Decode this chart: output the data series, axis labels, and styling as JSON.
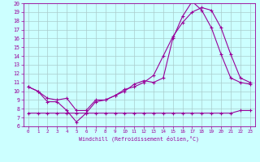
{
  "xlabel": "Windchill (Refroidissement éolien,°C)",
  "x": [
    0,
    1,
    2,
    3,
    4,
    5,
    6,
    7,
    8,
    9,
    10,
    11,
    12,
    13,
    14,
    15,
    16,
    17,
    18,
    19,
    20,
    21,
    22,
    23
  ],
  "line1": [
    10.5,
    10.0,
    8.8,
    8.8,
    7.8,
    6.5,
    7.5,
    8.8,
    9.0,
    9.5,
    10.0,
    10.8,
    11.2,
    11.0,
    11.5,
    16.0,
    18.5,
    20.2,
    19.2,
    17.2,
    14.2,
    11.5,
    11.0,
    10.8
  ],
  "line2": [
    10.5,
    10.0,
    9.2,
    9.0,
    9.2,
    7.8,
    7.8,
    9.0,
    9.0,
    9.5,
    10.2,
    10.5,
    11.0,
    11.8,
    14.0,
    16.2,
    17.8,
    19.0,
    19.5,
    19.2,
    17.2,
    14.2,
    11.5,
    11.0
  ],
  "line3": [
    7.5,
    7.5,
    7.5,
    7.5,
    7.5,
    7.5,
    7.5,
    7.5,
    7.5,
    7.5,
    7.5,
    7.5,
    7.5,
    7.5,
    7.5,
    7.5,
    7.5,
    7.5,
    7.5,
    7.5,
    7.5,
    7.5,
    7.8,
    7.8
  ],
  "line_color": "#990099",
  "bg_color": "#ccffff",
  "grid_color": "#aacccc",
  "ylim": [
    6,
    20
  ],
  "xlim": [
    -0.5,
    23.5
  ],
  "yticks": [
    6,
    7,
    8,
    9,
    10,
    11,
    12,
    13,
    14,
    15,
    16,
    17,
    18,
    19,
    20
  ],
  "xticks": [
    0,
    1,
    2,
    3,
    4,
    5,
    6,
    7,
    8,
    9,
    10,
    11,
    12,
    13,
    14,
    15,
    16,
    17,
    18,
    19,
    20,
    21,
    22,
    23
  ]
}
